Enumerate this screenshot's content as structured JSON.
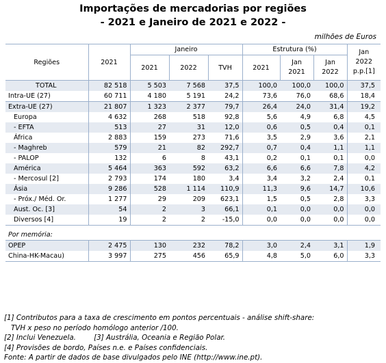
{
  "title_line1": "Importações de mercadorias por regiões",
  "title_line2": "- 2021 e Janeiro de 2021 e 2022 -",
  "unit": "milhões de Euros",
  "headers": {
    "regioes": "Regiões",
    "y2021": "2021",
    "janeiro": "Janeiro",
    "estrutura": "Estrutura (%)",
    "jan_line1": "Jan",
    "jan_line2": "2022",
    "jan_line3": "p.p.[1]",
    "jan_2021": "2021",
    "jan_2022": "2022",
    "tvh": "TVH",
    "est_2021": "2021",
    "est_jan2021_a": "Jan",
    "est_jan2021_b": "2021",
    "est_jan2022_a": "Jan",
    "est_jan2022_b": "2022"
  },
  "rows": [
    {
      "region": "TOTAL",
      "v2021": "82 518",
      "jan2021": "5 503",
      "jan2022": "7 568",
      "tvh": "37,5",
      "e2021": "100,0",
      "ej2021": "100,0",
      "ej2022": "100,0",
      "pp": "37,5"
    },
    {
      "region": "Intra-UE (27)",
      "v2021": "60 711",
      "jan2021": "4 180",
      "jan2022": "5 191",
      "tvh": "24,2",
      "e2021": "73,6",
      "ej2021": "76,0",
      "ej2022": "68,6",
      "pp": "18,4"
    },
    {
      "region": "Extra-UE (27)",
      "v2021": "21 807",
      "jan2021": "1 323",
      "jan2022": "2 377",
      "tvh": "79,7",
      "e2021": "26,4",
      "ej2021": "24,0",
      "ej2022": "31,4",
      "pp": "19,2"
    },
    {
      "region": "Europa",
      "v2021": "4 632",
      "jan2021": "268",
      "jan2022": "518",
      "tvh": "92,8",
      "e2021": "5,6",
      "ej2021": "4,9",
      "ej2022": "6,8",
      "pp": "4,5"
    },
    {
      "region": "- EFTA",
      "v2021": "513",
      "jan2021": "27",
      "jan2022": "31",
      "tvh": "12,0",
      "e2021": "0,6",
      "ej2021": "0,5",
      "ej2022": "0,4",
      "pp": "0,1"
    },
    {
      "region": "África",
      "v2021": "2 883",
      "jan2021": "159",
      "jan2022": "273",
      "tvh": "71,6",
      "e2021": "3,5",
      "ej2021": "2,9",
      "ej2022": "3,6",
      "pp": "2,1"
    },
    {
      "region": "- Maghreb",
      "v2021": "579",
      "jan2021": "21",
      "jan2022": "82",
      "tvh": "292,7",
      "e2021": "0,7",
      "ej2021": "0,4",
      "ej2022": "1,1",
      "pp": "1,1"
    },
    {
      "region": "- PALOP",
      "v2021": "132",
      "jan2021": "6",
      "jan2022": "8",
      "tvh": "43,1",
      "e2021": "0,2",
      "ej2021": "0,1",
      "ej2022": "0,1",
      "pp": "0,0"
    },
    {
      "region": "América",
      "v2021": "5 464",
      "jan2021": "363",
      "jan2022": "592",
      "tvh": "63,2",
      "e2021": "6,6",
      "ej2021": "6,6",
      "ej2022": "7,8",
      "pp": "4,2"
    },
    {
      "region": "- Mercosul [2]",
      "v2021": "2 793",
      "jan2021": "174",
      "jan2022": "180",
      "tvh": "3,4",
      "e2021": "3,4",
      "ej2021": "3,2",
      "ej2022": "2,4",
      "pp": "0,1"
    },
    {
      "region": "Ásia",
      "v2021": "9 286",
      "jan2021": "528",
      "jan2022": "1 114",
      "tvh": "110,9",
      "e2021": "11,3",
      "ej2021": "9,6",
      "ej2022": "14,7",
      "pp": "10,6"
    },
    {
      "region": "- Próx./ Méd. Or.",
      "v2021": "1 277",
      "jan2021": "29",
      "jan2022": "209",
      "tvh": "623,1",
      "e2021": "1,5",
      "ej2021": "0,5",
      "ej2022": "2,8",
      "pp": "3,3"
    },
    {
      "region": "Aust. Oc. [3]",
      "v2021": "54",
      "jan2021": "2",
      "jan2022": "3",
      "tvh": "66,1",
      "e2021": "0,1",
      "ej2021": "0,0",
      "ej2022": "0,0",
      "pp": "0,0"
    },
    {
      "region": "Diversos [4]",
      "v2021": "19",
      "jan2021": "2",
      "jan2022": "2",
      "tvh": "-15,0",
      "e2021": "0,0",
      "ej2021": "0,0",
      "ej2022": "0,0",
      "pp": "0,0"
    }
  ],
  "memo_label": "Por memória:",
  "memo_rows": [
    {
      "region": "OPEP",
      "v2021": "2 475",
      "jan2021": "130",
      "jan2022": "232",
      "tvh": "78,2",
      "e2021": "3,0",
      "ej2021": "2,4",
      "ej2022": "3,1",
      "pp": "1,9"
    },
    {
      "region": "China-HK-Macau)",
      "v2021": "3 997",
      "jan2021": "275",
      "jan2022": "456",
      "tvh": "65,9",
      "e2021": "4,8",
      "ej2021": "5,0",
      "ej2022": "6,0",
      "pp": "3,3"
    }
  ],
  "notes": [
    "[1] Contributos para a taxa de crescimento em pontos percentuais - análise shift-share:",
    "TVH x peso no período homólogo anterior /100.",
    "[2] Inclui Venezuela.        [3] Austrália, Oceania e Região Polar.",
    "[4] Provisões de bordo, Países n.e. e Países confidenciais.",
    "Fonte: A partir de dados de base divulgados pelo INE (http://www.ine.pt)."
  ],
  "colors": {
    "shade": "#e5eaf1",
    "rule": "#9bb0cc"
  }
}
